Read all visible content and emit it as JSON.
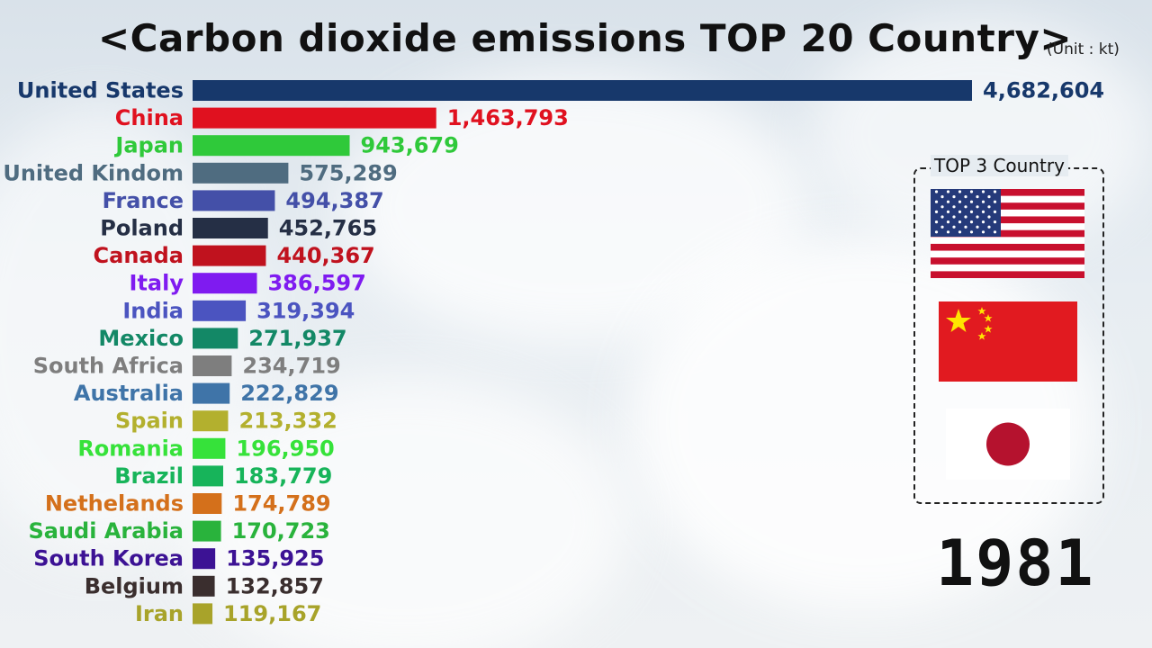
{
  "title": "<Carbon dioxide emissions TOP 20 Country>",
  "unit": "(Unit : kt)",
  "top3_title": "TOP 3 Country",
  "year": "1981",
  "flags": [
    "us-flag-icon",
    "china-flag-icon",
    "japan-flag-icon"
  ],
  "chart_data": {
    "type": "bar",
    "orientation": "horizontal",
    "title": "<Carbon dioxide emissions TOP 20 Country>",
    "categories": [
      "United States",
      "China",
      "Japan",
      "United Kindom",
      "France",
      "Poland",
      "Canada",
      "Italy",
      "India",
      "Mexico",
      "South Africa",
      "Australia",
      "Spain",
      "Romania",
      "Brazil",
      "Nethelands",
      "Saudi Arabia",
      "South Korea",
      "Belgium",
      "Iran"
    ],
    "values": [
      4682604,
      1463793,
      943679,
      575289,
      494387,
      452765,
      440367,
      386597,
      319394,
      271937,
      234719,
      222829,
      213332,
      196950,
      183779,
      174789,
      170723,
      135925,
      132857,
      119167
    ],
    "value_labels": [
      "4,682,604",
      "1,463,793",
      "943,679",
      "575,289",
      "494,387",
      "452,765",
      "440,367",
      "386,597",
      "319,394",
      "271,937",
      "234,719",
      "222,829",
      "213,332",
      "196,950",
      "183,779",
      "174,789",
      "170,723",
      "135,925",
      "132,857",
      "119,167"
    ],
    "colors": [
      "#17386b",
      "#e0111f",
      "#2fc93a",
      "#4f6c80",
      "#4450a8",
      "#252f45",
      "#c0121e",
      "#7f1bf0",
      "#4b54c0",
      "#138866",
      "#7e7e7e",
      "#3f74a8",
      "#b3b02e",
      "#36e23a",
      "#17b45a",
      "#d4701b",
      "#29b33c",
      "#3c1294",
      "#3a2e2e",
      "#a8a32a"
    ],
    "xlim": [
      0,
      4682604
    ],
    "grid": false,
    "legend": "none"
  }
}
